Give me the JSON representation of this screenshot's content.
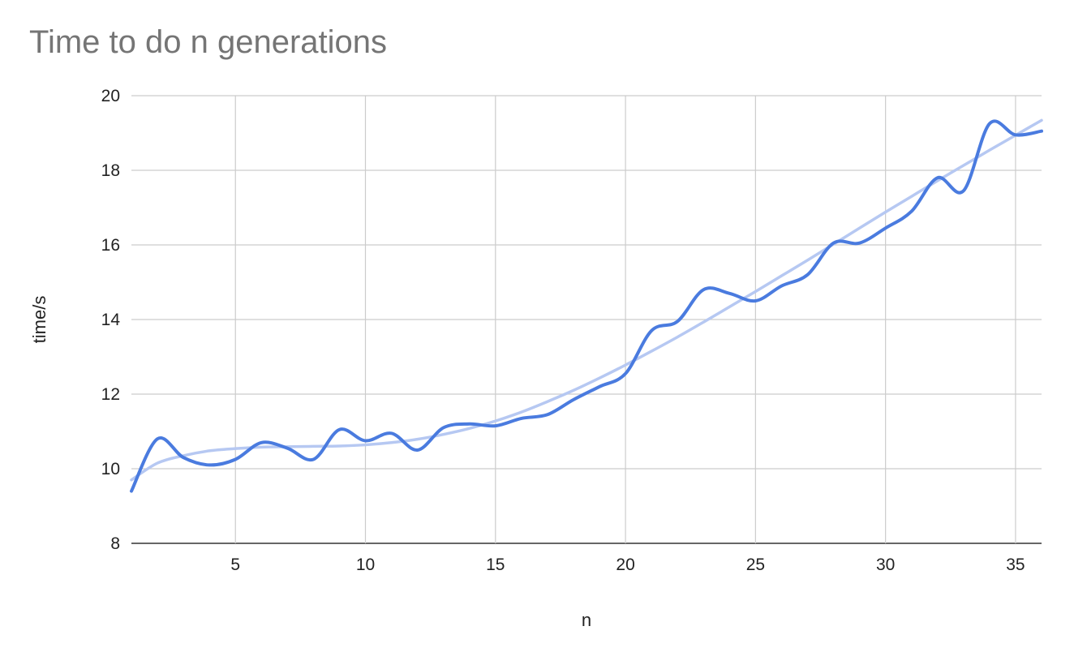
{
  "chart_data": {
    "type": "line",
    "title": "Time to do n generations",
    "xlabel": "n",
    "ylabel": "time/s",
    "xlim": [
      1,
      36
    ],
    "ylim": [
      8,
      20
    ],
    "x_ticks": [
      5,
      10,
      15,
      20,
      25,
      30,
      35
    ],
    "y_ticks": [
      8,
      10,
      12,
      14,
      16,
      18,
      20
    ],
    "grid": true,
    "legend": "none",
    "series": [
      {
        "color": "#4a7bdf",
        "x": [
          1,
          2,
          3,
          4,
          5,
          6,
          7,
          8,
          9,
          10,
          11,
          12,
          13,
          14,
          15,
          16,
          17,
          18,
          19,
          20,
          21,
          22,
          23,
          24,
          25,
          26,
          27,
          28,
          29,
          30,
          31,
          32,
          33,
          34,
          35,
          36
        ],
        "y": [
          9.4,
          10.8,
          10.3,
          10.1,
          10.25,
          10.7,
          10.55,
          10.25,
          11.05,
          10.75,
          10.95,
          10.5,
          11.1,
          11.2,
          11.15,
          11.35,
          11.45,
          11.85,
          12.2,
          12.55,
          13.7,
          13.95,
          14.8,
          14.7,
          14.5,
          14.9,
          15.2,
          16.05,
          16.05,
          16.45,
          16.9,
          17.8,
          17.45,
          19.25,
          18.95,
          19.05
        ]
      },
      {
        "color": "#b6c8f2",
        "trendline": true,
        "x": [
          1,
          2,
          3,
          4,
          5,
          6,
          7,
          8,
          9,
          10,
          11,
          12,
          13,
          14,
          15,
          16,
          17,
          18,
          19,
          20,
          21,
          22,
          23,
          24,
          25,
          26,
          27,
          28,
          29,
          30,
          31,
          32,
          33,
          34,
          35,
          36
        ],
        "y": [
          9.7,
          10.15,
          10.35,
          10.48,
          10.54,
          10.58,
          10.59,
          10.6,
          10.61,
          10.64,
          10.7,
          10.79,
          10.92,
          11.08,
          11.28,
          11.52,
          11.8,
          12.1,
          12.43,
          12.78,
          13.15,
          13.53,
          13.93,
          14.34,
          14.75,
          15.17,
          15.59,
          16.02,
          16.45,
          16.88,
          17.3,
          17.72,
          18.13,
          18.54,
          18.94,
          19.34
        ]
      }
    ]
  }
}
